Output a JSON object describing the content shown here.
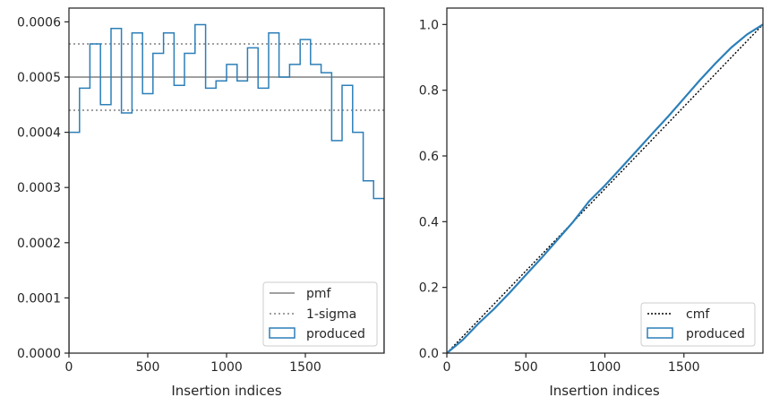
{
  "colors": {
    "pmf": "#808080",
    "sigma": "#808080",
    "produced": "#2c7fb8",
    "cmf": "#000000",
    "axes": "#262626",
    "legend_border": "#cccccc"
  },
  "chart_data": [
    {
      "type": "histogram",
      "xlabel": "Insertion indices",
      "ylabel": "",
      "xlim": [
        0,
        2000
      ],
      "ylim": [
        0,
        0.000625
      ],
      "x_ticks": [
        0,
        500,
        1000,
        1500
      ],
      "x_tick_labels": [
        "0",
        "500",
        "1000",
        "1500"
      ],
      "y_ticks": [
        0,
        0.0001,
        0.0002,
        0.0003,
        0.0004,
        0.0005,
        0.0006
      ],
      "y_tick_labels": [
        "0.0000",
        "0.0001",
        "0.0002",
        "0.0003",
        "0.0004",
        "0.0005",
        "0.0006"
      ],
      "legend": {
        "placement": "lower-right",
        "entries": [
          "pmf",
          "1-sigma",
          "produced"
        ]
      },
      "pmf": 0.0005,
      "sigma_band": [
        0.00044,
        0.00056
      ],
      "bins": {
        "edges": [
          0,
          67,
          133,
          200,
          267,
          333,
          400,
          467,
          533,
          600,
          667,
          733,
          800,
          867,
          933,
          1000,
          1067,
          1133,
          1200,
          1267,
          1333,
          1400,
          1467,
          1533,
          1600,
          1667,
          1733,
          1800,
          1867,
          1933,
          2000
        ],
        "values": [
          0.0004,
          0.00048,
          0.00056,
          0.00045,
          0.000588,
          0.000435,
          0.00058,
          0.00047,
          0.000543,
          0.00058,
          0.000485,
          0.000543,
          0.000595,
          0.00048,
          0.000493,
          0.000523,
          0.000493,
          0.000553,
          0.00048,
          0.00058,
          0.0005,
          0.000523,
          0.000568,
          0.000523,
          0.000508,
          0.000385,
          0.000485,
          0.0004,
          0.000312,
          0.00028
        ]
      }
    },
    {
      "type": "line",
      "xlabel": "Insertion indices",
      "ylabel": "",
      "xlim": [
        0,
        2000
      ],
      "ylim": [
        0,
        1.05
      ],
      "x_ticks": [
        0,
        500,
        1000,
        1500
      ],
      "x_tick_labels": [
        "0",
        "500",
        "1000",
        "1500"
      ],
      "y_ticks": [
        0,
        0.2,
        0.4,
        0.6,
        0.8,
        1.0
      ],
      "y_tick_labels": [
        "0.0",
        "0.2",
        "0.4",
        "0.6",
        "0.8",
        "1.0"
      ],
      "legend": {
        "placement": "lower-right",
        "entries": [
          "cmf",
          "produced"
        ]
      },
      "series": [
        {
          "name": "cmf",
          "style": "dotted",
          "x": [
            0,
            2000
          ],
          "y": [
            0,
            1.0
          ]
        },
        {
          "name": "produced",
          "style": "solid",
          "x": [
            0,
            100,
            200,
            300,
            400,
            500,
            600,
            700,
            800,
            900,
            1000,
            1100,
            1200,
            1300,
            1400,
            1500,
            1600,
            1700,
            1800,
            1900,
            2000
          ],
          "y": [
            0,
            0.04,
            0.09,
            0.135,
            0.185,
            0.238,
            0.29,
            0.345,
            0.4,
            0.462,
            0.51,
            0.562,
            0.615,
            0.668,
            0.72,
            0.775,
            0.83,
            0.882,
            0.93,
            0.97,
            1.0
          ]
        }
      ]
    }
  ]
}
